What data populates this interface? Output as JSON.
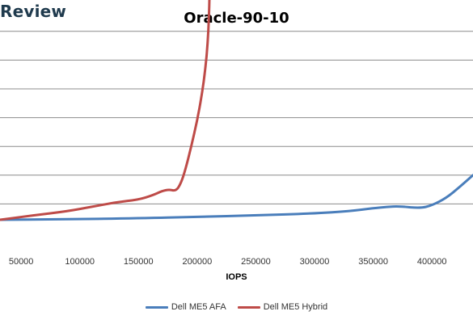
{
  "brand": {
    "text": "Review"
  },
  "chart_data": {
    "type": "line",
    "title": "Oracle-90-10",
    "xlabel": "IOPS",
    "ylabel": "",
    "xlim": [
      32000,
      435000
    ],
    "ylim": [
      0,
      12
    ],
    "x_ticks": [
      50000,
      100000,
      150000,
      200000,
      250000,
      300000,
      350000,
      400000
    ],
    "y_gridlines": [
      1,
      2,
      3,
      4,
      5,
      6,
      7
    ],
    "legend_position": "bottom",
    "series": [
      {
        "name": "Dell ME5 AFA",
        "color": "#4a7ebb",
        "x": [
          32000,
          80000,
          150000,
          200000,
          250000,
          300000,
          330000,
          350000,
          362000,
          372000,
          390000,
          400000,
          412000,
          424000,
          435000
        ],
        "y": [
          0.45,
          0.46,
          0.5,
          0.55,
          0.6,
          0.67,
          0.75,
          0.85,
          0.9,
          0.92,
          0.85,
          0.95,
          1.2,
          1.6,
          2.0
        ]
      },
      {
        "name": "Dell ME5 Hybrid",
        "color": "#be4b48",
        "x": [
          32000,
          60000,
          90000,
          110000,
          130000,
          150000,
          162000,
          170000,
          176000,
          182000,
          186000,
          190000,
          195000,
          200000,
          204000,
          207000,
          209000,
          210000,
          210500
        ],
        "y": [
          0.45,
          0.6,
          0.75,
          0.9,
          1.05,
          1.15,
          1.3,
          1.45,
          1.5,
          1.45,
          1.7,
          2.2,
          3.0,
          3.9,
          4.8,
          5.7,
          6.6,
          7.5,
          8.25
        ]
      }
    ]
  }
}
